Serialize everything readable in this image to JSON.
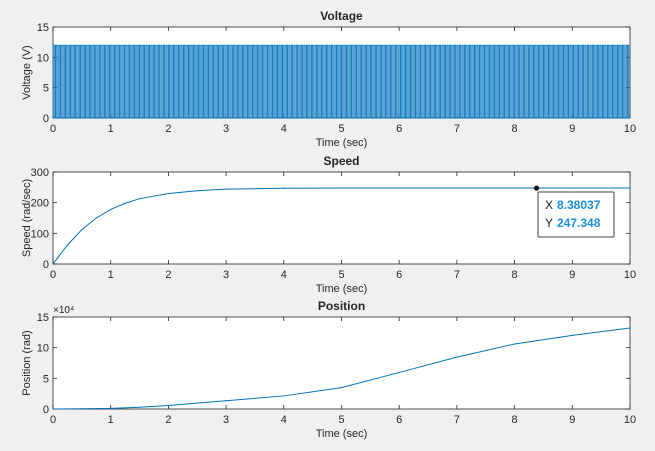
{
  "chart_data": [
    {
      "type": "line",
      "title": "Voltage",
      "xlabel": "Time (sec)",
      "ylabel": "Voltage (V)",
      "xlim": [
        0,
        10
      ],
      "ylim": [
        0,
        15
      ],
      "xticks": [
        "0",
        "1",
        "2",
        "3",
        "4",
        "5",
        "6",
        "7",
        "8",
        "9",
        "10"
      ],
      "yticks": [
        "0",
        "5",
        "10",
        "15"
      ],
      "grid": false,
      "color": "#0072bd",
      "series": [
        {
          "description": "PWM square wave switching between 0 V and 12 V over the full 0–10 s range",
          "low": 0,
          "high": 12
        }
      ]
    },
    {
      "type": "line",
      "title": "Speed",
      "xlabel": "Time (sec)",
      "ylabel": "Speed (rad/sec)",
      "xlim": [
        0,
        10
      ],
      "ylim": [
        0,
        300
      ],
      "xticks": [
        "0",
        "1",
        "2",
        "3",
        "4",
        "5",
        "6",
        "7",
        "8",
        "9",
        "10"
      ],
      "yticks": [
        "0",
        "100",
        "200",
        "300"
      ],
      "grid": false,
      "color": "#0072bd",
      "series": [
        {
          "x": [
            0,
            0.25,
            0.5,
            0.75,
            1,
            1.25,
            1.5,
            2,
            2.5,
            3,
            4,
            5,
            6,
            7,
            8,
            9,
            10
          ],
          "y": [
            0,
            62,
            112,
            150,
            178,
            198,
            213,
            230,
            239,
            244,
            247,
            248,
            248,
            248,
            248,
            248,
            248
          ]
        }
      ],
      "datatip": {
        "x_label": "X",
        "x_value": "8.38037",
        "y_label": "Y",
        "y_value": "247.348",
        "x": 8.38037,
        "y": 247.348
      }
    },
    {
      "type": "line",
      "title": "Position",
      "xlabel": "Time (sec)",
      "ylabel": "Position (rad)",
      "xlim": [
        0,
        10
      ],
      "ylim": [
        0,
        150000
      ],
      "xticks": [
        "0",
        "1",
        "2",
        "3",
        "4",
        "5",
        "6",
        "7",
        "8",
        "9",
        "10"
      ],
      "yticks": [
        "0",
        "5",
        "10",
        "15"
      ],
      "exponent_label": "×10⁴",
      "grid": false,
      "color": "#0072bd",
      "series": [
        {
          "x": [
            0,
            0.5,
            1,
            1.5,
            2,
            3,
            4,
            5,
            6,
            7,
            8,
            9,
            10
          ],
          "y": [
            0,
            400,
            1000,
            2800,
            5700,
            13500,
            21300,
            34800,
            59600,
            84600,
            106000,
            120000,
            132000
          ]
        }
      ]
    }
  ]
}
